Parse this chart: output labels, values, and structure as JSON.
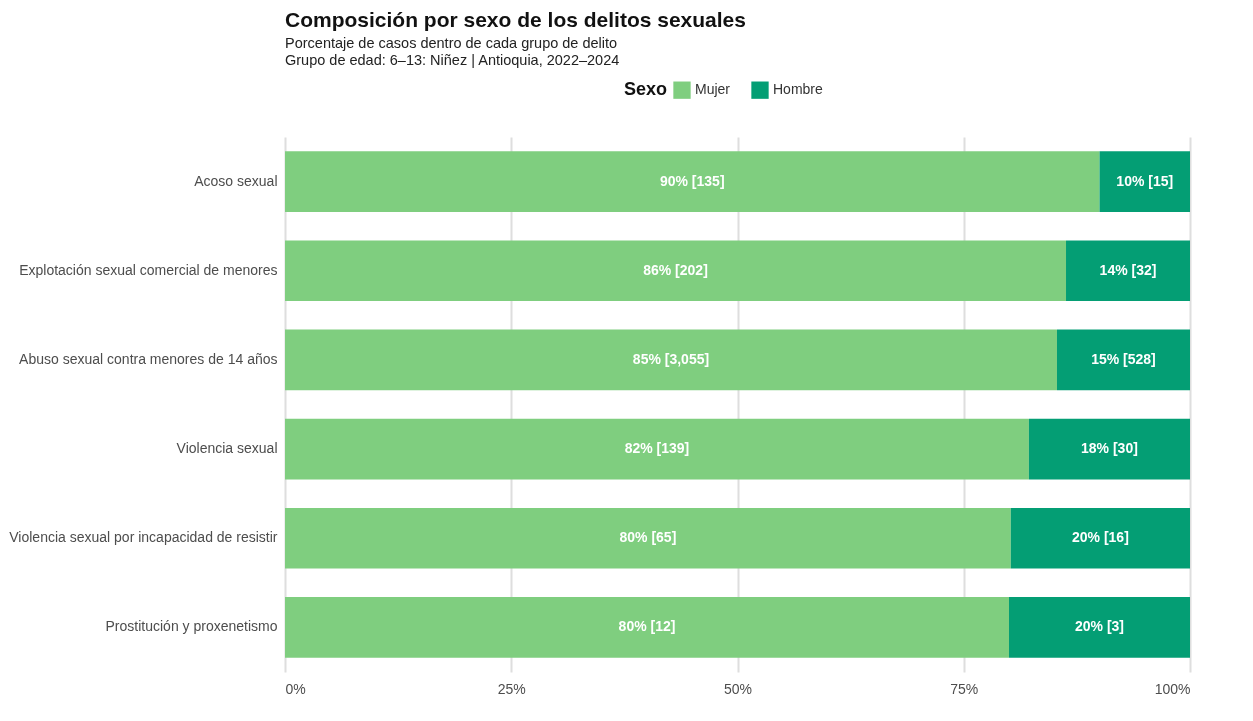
{
  "chart_data": {
    "type": "bar",
    "orientation": "horizontal",
    "stacked": true,
    "title": "Composición por sexo de los delitos sexuales",
    "subtitle": "Porcentaje de casos dentro de cada grupo de delito\nGrupo de edad: 6–13: Niñez | Antioquia, 2022–2024",
    "legend_title": "Sexo",
    "legend": "top",
    "grid": "x",
    "categories": [
      "Acoso sexual",
      "Explotación sexual comercial de menores",
      "Abuso sexual contra menores de 14 años",
      "Violencia sexual",
      "Violencia sexual por incapacidad de resistir",
      "Prostitución y proxenetismo"
    ],
    "xlim": [
      0,
      100
    ],
    "xticks": [
      {
        "value": 0,
        "label": "0%"
      },
      {
        "value": 25,
        "label": "25%"
      },
      {
        "value": 50,
        "label": "50%"
      },
      {
        "value": 75,
        "label": "75%"
      },
      {
        "value": 100,
        "label": "100%"
      }
    ],
    "series": [
      {
        "name": "Mujer",
        "color": "#7fce7f",
        "values": [
          90,
          86.3,
          85.3,
          82.2,
          80.2,
          80
        ],
        "value_labels": [
          "90% [135]",
          "86% [202]",
          "85% [3,055]",
          "82% [139]",
          "80% [65]",
          "80% [12]"
        ]
      },
      {
        "name": "Hombre",
        "color": "#049e74",
        "values": [
          10,
          13.7,
          14.7,
          17.8,
          19.8,
          20
        ],
        "value_labels": [
          "10% [15]",
          "14% [32]",
          "15% [528]",
          "18% [30]",
          "20% [16]",
          "20% [3]"
        ]
      }
    ]
  }
}
